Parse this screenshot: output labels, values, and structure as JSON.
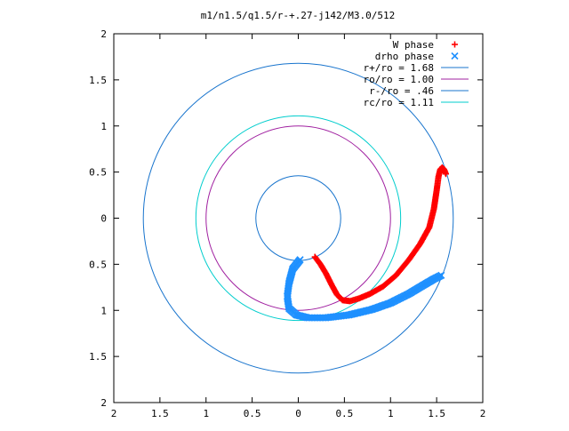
{
  "chart_data": {
    "type": "scatter",
    "title": "m1/n1.5/q1.5/r-+.27-j142/M3.0/512",
    "xlabel": "",
    "ylabel": "",
    "xlim": [
      -2,
      2
    ],
    "ylim": [
      -2,
      2
    ],
    "grid": false,
    "legend_position": "top-right",
    "x_ticks": [
      -2,
      -1.5,
      -1,
      -0.5,
      0,
      0.5,
      1,
      1.5,
      2
    ],
    "x_tick_labels": [
      "2",
      "1.5",
      "1",
      "0.5",
      "0",
      "0.5",
      "1",
      "1.5",
      "2"
    ],
    "y_ticks": [
      -2,
      -1.5,
      -1,
      -0.5,
      0,
      0.5,
      1,
      1.5,
      2
    ],
    "y_tick_labels": [
      "2",
      "1.5",
      "1",
      "0.5",
      "0",
      "0.5",
      "1",
      "1.5",
      "2"
    ],
    "series": [
      {
        "name": "W phase",
        "kind": "points",
        "marker": "plus",
        "color": "#ff0000",
        "x": [
          0.18,
          0.24,
          0.3,
          0.36,
          0.42,
          0.48,
          0.56,
          0.66,
          0.78,
          0.92,
          1.06,
          1.2,
          1.32,
          1.42,
          1.47,
          1.5,
          1.52,
          1.54,
          1.56,
          1.58,
          1.6
        ],
        "y": [
          -0.42,
          -0.5,
          -0.6,
          -0.72,
          -0.83,
          -0.89,
          -0.9,
          -0.87,
          -0.82,
          -0.74,
          -0.62,
          -0.45,
          -0.28,
          -0.1,
          0.1,
          0.3,
          0.45,
          0.53,
          0.55,
          0.53,
          0.48
        ]
      },
      {
        "name": "drho phase",
        "kind": "points",
        "marker": "cross",
        "color": "#1e90ff",
        "x": [
          0.02,
          -0.06,
          -0.1,
          -0.12,
          -0.1,
          -0.02,
          0.1,
          0.3,
          0.55,
          0.8,
          1.0,
          1.2,
          1.35,
          1.47,
          1.55
        ],
        "y": [
          -0.45,
          -0.55,
          -0.7,
          -0.85,
          -0.98,
          -1.05,
          -1.08,
          -1.08,
          -1.05,
          -0.99,
          -0.92,
          -0.82,
          -0.73,
          -0.66,
          -0.62
        ]
      },
      {
        "name": "r+/ro = 1.68",
        "kind": "circle",
        "radius": 1.68,
        "color": "#1874cd"
      },
      {
        "name": "ro/ro = 1.00",
        "kind": "circle",
        "radius": 1.0,
        "color": "#a020a0"
      },
      {
        "name": "r-/ro = .46",
        "kind": "circle",
        "radius": 0.46,
        "color": "#1874cd"
      },
      {
        "name": "rc/ro = 1.11",
        "kind": "circle",
        "radius": 1.11,
        "color": "#00cdcd"
      }
    ]
  }
}
